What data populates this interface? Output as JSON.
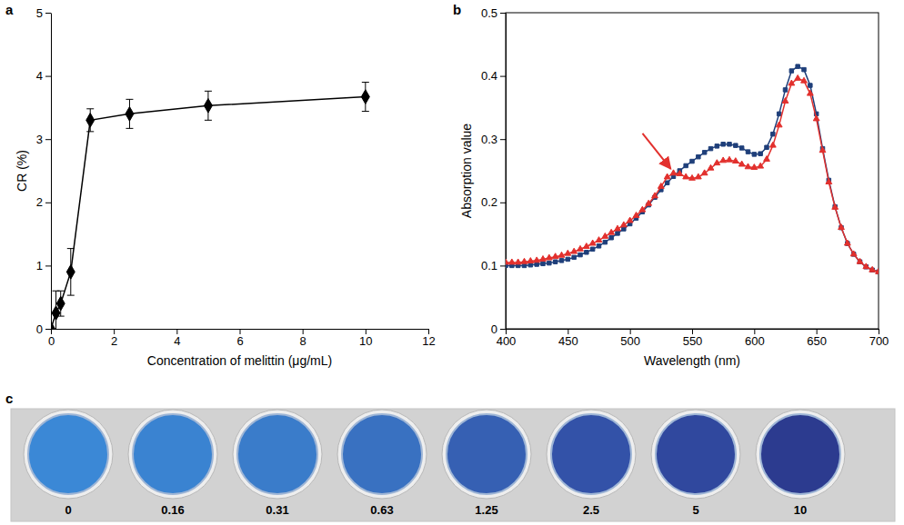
{
  "chart_data": [
    {
      "type": "line",
      "panel": "a",
      "x_label": "Concentration of melittin (μg/mL)",
      "y_label": "CR (%)",
      "x": [
        0,
        0.16,
        0.31,
        0.63,
        1.25,
        2.5,
        5,
        10
      ],
      "values": [
        0,
        0.25,
        0.4,
        0.9,
        3.3,
        3.4,
        3.53,
        3.67
      ],
      "errors": [
        0,
        0.35,
        0.2,
        0.37,
        0.18,
        0.23,
        0.23,
        0.23
      ],
      "color": "#000000",
      "marker": "diamond",
      "xlim": [
        0,
        12
      ],
      "xticks": [
        0,
        2,
        4,
        6,
        8,
        10,
        12
      ],
      "ylim": [
        0,
        5
      ],
      "yticks": [
        0,
        1,
        2,
        3,
        4,
        5
      ]
    },
    {
      "type": "line",
      "panel": "b",
      "x_label": "Wavelength (nm)",
      "y_label": "Absorption value",
      "x": [
        400,
        405,
        410,
        415,
        420,
        425,
        430,
        435,
        440,
        445,
        450,
        455,
        460,
        465,
        470,
        475,
        480,
        485,
        490,
        495,
        500,
        505,
        510,
        515,
        520,
        525,
        530,
        535,
        540,
        545,
        550,
        555,
        560,
        565,
        570,
        575,
        580,
        585,
        590,
        595,
        600,
        605,
        610,
        615,
        620,
        625,
        630,
        635,
        640,
        645,
        650,
        655,
        660,
        665,
        670,
        675,
        680,
        685,
        690,
        695,
        700
      ],
      "series": [
        {
          "color": "#1f3f7a",
          "marker": "square",
          "values": [
            0.1,
            0.1,
            0.1,
            0.1,
            0.101,
            0.102,
            0.103,
            0.104,
            0.106,
            0.108,
            0.11,
            0.113,
            0.117,
            0.121,
            0.126,
            0.131,
            0.137,
            0.144,
            0.151,
            0.158,
            0.166,
            0.175,
            0.185,
            0.196,
            0.208,
            0.22,
            0.231,
            0.241,
            0.25,
            0.258,
            0.265,
            0.272,
            0.279,
            0.285,
            0.289,
            0.292,
            0.292,
            0.29,
            0.286,
            0.28,
            0.276,
            0.277,
            0.287,
            0.308,
            0.34,
            0.378,
            0.408,
            0.415,
            0.41,
            0.385,
            0.34,
            0.285,
            0.235,
            0.193,
            0.16,
            0.135,
            0.118,
            0.106,
            0.098,
            0.093,
            0.09
          ]
        },
        {
          "color": "#e2302d",
          "marker": "triangle",
          "values": [
            0.105,
            0.105,
            0.105,
            0.106,
            0.107,
            0.108,
            0.11,
            0.112,
            0.114,
            0.116,
            0.119,
            0.122,
            0.126,
            0.13,
            0.135,
            0.14,
            0.146,
            0.152,
            0.158,
            0.164,
            0.171,
            0.179,
            0.188,
            0.198,
            0.21,
            0.225,
            0.24,
            0.246,
            0.245,
            0.24,
            0.238,
            0.24,
            0.246,
            0.254,
            0.262,
            0.266,
            0.267,
            0.265,
            0.26,
            0.256,
            0.255,
            0.257,
            0.268,
            0.29,
            0.322,
            0.36,
            0.388,
            0.396,
            0.392,
            0.372,
            0.332,
            0.282,
            0.232,
            0.192,
            0.16,
            0.135,
            0.118,
            0.106,
            0.098,
            0.093,
            0.09
          ]
        }
      ],
      "xlim": [
        400,
        700
      ],
      "xticks": [
        400,
        450,
        500,
        550,
        600,
        650,
        700
      ],
      "ylim": [
        0,
        0.5
      ],
      "yticks": [
        0,
        0.1,
        0.2,
        0.3,
        0.4,
        0.5
      ]
    },
    {
      "type": "wells",
      "panel": "c",
      "categories": [
        "0",
        "0.16",
        "0.31",
        "0.63",
        "1.25",
        "2.5",
        "5",
        "10"
      ],
      "colors": [
        "#3b88d6",
        "#3a83d1",
        "#3a7cca",
        "#3971c1",
        "#3660b3",
        "#3352a8",
        "#30489e",
        "#2c3b8f"
      ]
    }
  ]
}
